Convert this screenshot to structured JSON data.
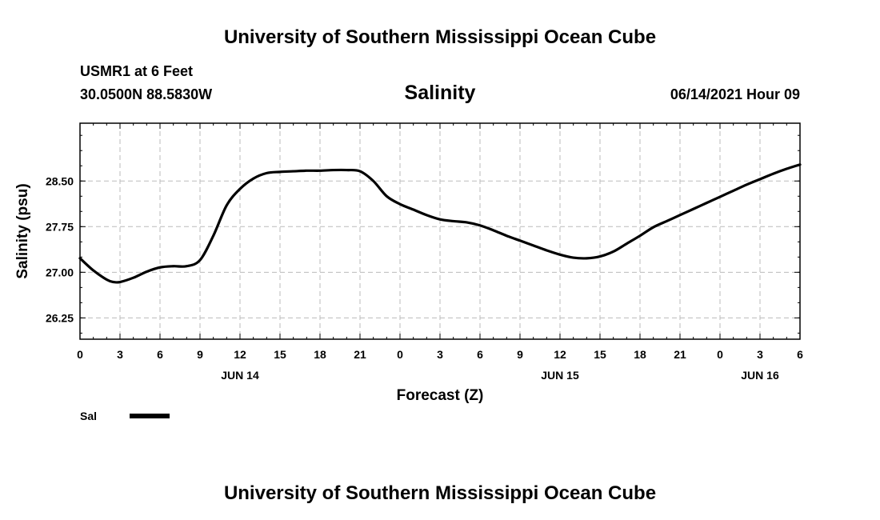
{
  "header": {
    "title": "University of Southern Mississippi Ocean Cube",
    "station": "USMR1 at 6 Feet",
    "location": "30.0500N  88.5830W",
    "forecast_time": "06/14/2021 Hour 09"
  },
  "footer": {
    "title": "University of Southern Mississippi Ocean Cube"
  },
  "chart_data": {
    "type": "line",
    "title": "Salinity",
    "xlabel": "Forecast (Z)",
    "ylabel": "Salinity (psu)",
    "xlim": [
      0,
      54
    ],
    "ylim": [
      25.9,
      29.45
    ],
    "grid": true,
    "yticks": [
      26.25,
      27.0,
      27.75,
      28.5
    ],
    "ytick_labels": [
      "26.25",
      "27.00",
      "27.75",
      "28.50"
    ],
    "xticks": [
      0,
      3,
      6,
      9,
      12,
      15,
      18,
      21,
      24,
      27,
      30,
      33,
      36,
      39,
      42,
      45,
      48,
      51,
      54
    ],
    "xtick_labels": [
      "0",
      "3",
      "6",
      "9",
      "12",
      "15",
      "18",
      "21",
      "0",
      "3",
      "6",
      "9",
      "12",
      "15",
      "18",
      "21",
      "0",
      "3",
      "6"
    ],
    "date_labels": [
      {
        "x": 12,
        "label": "JUN 14"
      },
      {
        "x": 36,
        "label": "JUN 15"
      },
      {
        "x": 51,
        "label": "JUN 16"
      }
    ],
    "legend": {
      "placement": "bottom-left",
      "entries": [
        {
          "label": "Sal",
          "color": "#000000"
        }
      ]
    },
    "series": [
      {
        "name": "Sal",
        "color": "#000000",
        "x": [
          0,
          1,
          2,
          2.5,
          3,
          4,
          5,
          6,
          7,
          8,
          9,
          10,
          11,
          12,
          13,
          14,
          15,
          16,
          17,
          18,
          19,
          20,
          21,
          22,
          23,
          24,
          25,
          26,
          27,
          28,
          29,
          30,
          31,
          32,
          33,
          34,
          35,
          36,
          37,
          38,
          39,
          40,
          41,
          42,
          43,
          44,
          45,
          46,
          47,
          48,
          49,
          50,
          51,
          52,
          53,
          54
        ],
        "values": [
          27.23,
          27.03,
          26.88,
          26.84,
          26.84,
          26.91,
          27.01,
          27.08,
          27.1,
          27.1,
          27.2,
          27.6,
          28.1,
          28.37,
          28.54,
          28.63,
          28.65,
          28.66,
          28.67,
          28.67,
          28.68,
          28.68,
          28.66,
          28.5,
          28.25,
          28.12,
          28.03,
          27.94,
          27.87,
          27.84,
          27.82,
          27.77,
          27.69,
          27.6,
          27.52,
          27.44,
          27.36,
          27.29,
          27.24,
          27.23,
          27.26,
          27.34,
          27.47,
          27.6,
          27.74,
          27.84,
          27.94,
          28.04,
          28.14,
          28.24,
          28.34,
          28.44,
          28.53,
          28.62,
          28.7,
          28.77
        ]
      }
    ]
  }
}
